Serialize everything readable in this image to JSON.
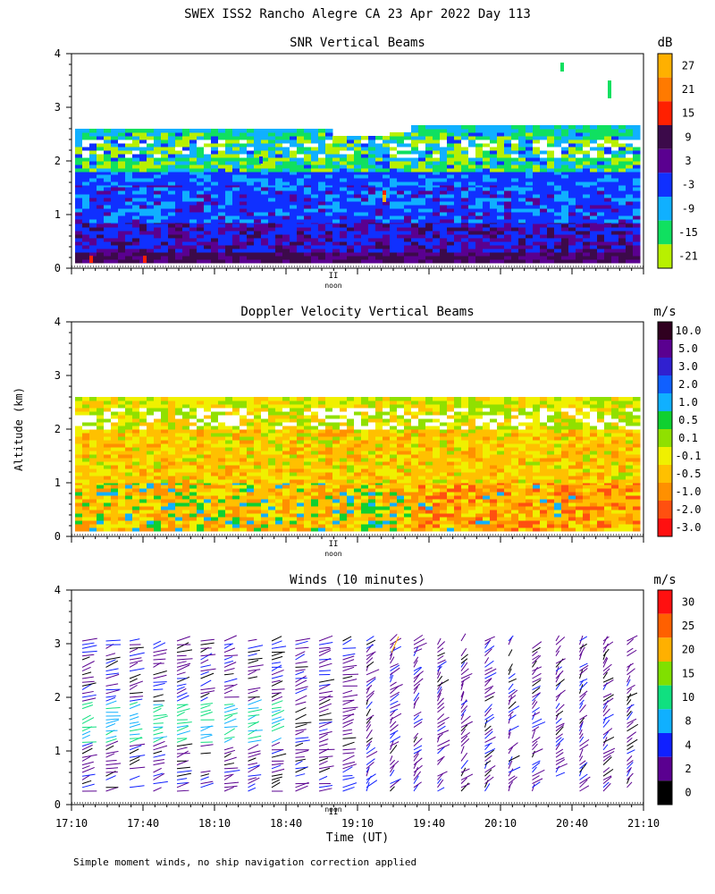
{
  "figure": {
    "title": "SWEX ISS2 Rancho Alegre CA  23 Apr 2022 Day 113",
    "ylabel": "Altitude (km)",
    "xlabel": "Time (UT)",
    "noon_label": "noon",
    "footnote": "Simple moment winds, no ship navigation correction applied"
  },
  "chart_data": [
    {
      "type": "heatmap",
      "title": "SNR Vertical Beams",
      "units": "dB",
      "ylim": [
        0,
        4
      ],
      "yticks": [
        "0",
        "1",
        "2",
        "3",
        "4"
      ],
      "colorbar_labels": [
        "27",
        "21",
        "15",
        "9",
        "3",
        "-3",
        "-9",
        "-15",
        "-21"
      ],
      "colorbar_colors": [
        "#ffb000",
        "#ff7a00",
        "#ff2000",
        "#3c0a4a",
        "#5a0090",
        "#1030ff",
        "#10b0ff",
        "#10e060",
        "#b8f000"
      ],
      "layers": [
        {
          "name": "dropouts",
          "bottom": 2.35,
          "top": 2.5,
          "value": "missing"
        },
        {
          "name": "upper-layer",
          "bottom": 1.8,
          "top": 2.65,
          "value": -12
        },
        {
          "name": "bright-band",
          "bottom": 1.55,
          "top": 1.75,
          "value": -3
        },
        {
          "name": "mid-layer",
          "bottom": 0.9,
          "top": 1.55,
          "value": -6
        },
        {
          "name": "boundary-layer",
          "bottom": 0.1,
          "top": 0.9,
          "value": 5
        }
      ]
    },
    {
      "type": "heatmap",
      "title": "Doppler Velocity Vertical Beams",
      "units": "m/s",
      "ylim": [
        0,
        4
      ],
      "yticks": [
        "0",
        "1",
        "2",
        "3",
        "4"
      ],
      "colorbar_labels": [
        "10.0",
        "5.0",
        "3.0",
        "2.0",
        "1.0",
        "0.5",
        "0.1",
        "-0.1",
        "-0.5",
        "-1.0",
        "-2.0",
        "-3.0"
      ],
      "colorbar_colors": [
        "#300020",
        "#5a0090",
        "#3020d0",
        "#1060ff",
        "#10b0ff",
        "#10d030",
        "#90e000",
        "#f0f000",
        "#ffc000",
        "#ff9000",
        "#ff5010",
        "#ff1010"
      ],
      "layers": [
        {
          "name": "upper-layer",
          "bottom": 2.0,
          "top": 2.6,
          "value": -0.1
        },
        {
          "name": "dropouts",
          "bottom": 1.8,
          "top": 2.4,
          "value": "missing"
        },
        {
          "name": "mid-layer",
          "bottom": 1.0,
          "top": 2.0,
          "value": -0.5
        },
        {
          "name": "lower-layer",
          "bottom": 0.1,
          "top": 1.0,
          "value": -1.0
        }
      ]
    },
    {
      "type": "scatter",
      "title": "Winds (10 minutes)",
      "units": "m/s",
      "ylim": [
        0,
        4
      ],
      "yticks": [
        "0",
        "1",
        "2",
        "3",
        "4"
      ],
      "xlim": [
        "17:10",
        "21:10"
      ],
      "xtick_labels": [
        "17:10",
        "17:40",
        "18:10",
        "18:40",
        "19:10",
        "19:40",
        "20:10",
        "20:40",
        "21:10"
      ],
      "colorbar_labels": [
        "30",
        "25",
        "20",
        "15",
        "10",
        "8",
        "4",
        "2",
        "0"
      ],
      "colorbar_colors": [
        "#ff1010",
        "#ff6000",
        "#ffb000",
        "#80e000",
        "#10e080",
        "#10b0ff",
        "#1020ff",
        "#5a0090",
        "#000000"
      ],
      "profile_count": 24,
      "altitude_top_km": 3.1,
      "altitude_bottom_km": 0.2
    }
  ]
}
